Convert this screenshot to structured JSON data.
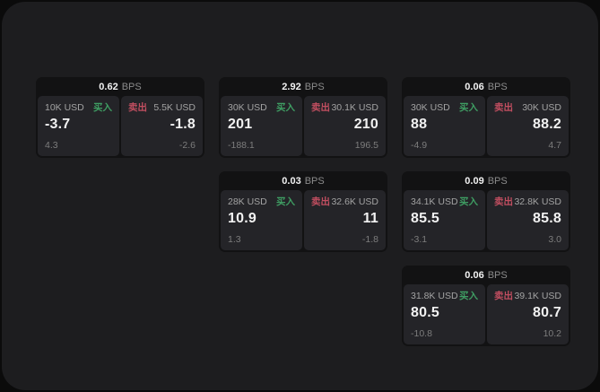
{
  "page": {
    "bps_unit": "BPS",
    "buy_label": "买入",
    "sell_label": "卖出"
  },
  "theme": {
    "bg-outer": "#0b0b0b",
    "bg-page": "#1d1d1f",
    "bg-card": "#121213",
    "bg-panel": "#242428",
    "buy-green": "#3f9e63",
    "sell-red": "#c14e60",
    "txt-white": "#f2f2f2",
    "txt-gray": "#a3a3a3",
    "txt-dim": "#7d7d7d"
  },
  "cards": [
    {
      "bps": "0.62",
      "buy": {
        "size": "10K USD",
        "value": "-3.7",
        "sub": "4.3"
      },
      "sell": {
        "size": "5.5K USD",
        "value": "-1.8",
        "sub": "-2.6"
      }
    },
    {
      "bps": "2.92",
      "buy": {
        "size": "30K USD",
        "value": "201",
        "sub": "-188.1"
      },
      "sell": {
        "size": "30.1K USD",
        "value": "210",
        "sub": "196.5"
      }
    },
    {
      "bps": "0.06",
      "buy": {
        "size": "30K USD",
        "value": "88",
        "sub": "-4.9"
      },
      "sell": {
        "size": "30K USD",
        "value": "88.2",
        "sub": "4.7"
      }
    },
    {
      "bps": "0.03",
      "buy": {
        "size": "28K USD",
        "value": "10.9",
        "sub": "1.3"
      },
      "sell": {
        "size": "32.6K USD",
        "value": "11",
        "sub": "-1.8"
      }
    },
    {
      "bps": "0.09",
      "buy": {
        "size": "34.1K USD",
        "value": "85.5",
        "sub": "-3.1"
      },
      "sell": {
        "size": "32.8K USD",
        "value": "85.8",
        "sub": "3.0"
      }
    },
    {
      "bps": "0.06",
      "buy": {
        "size": "31.8K USD",
        "value": "80.5",
        "sub": "-10.8"
      },
      "sell": {
        "size": "39.1K USD",
        "value": "80.7",
        "sub": "10.2"
      }
    }
  ]
}
